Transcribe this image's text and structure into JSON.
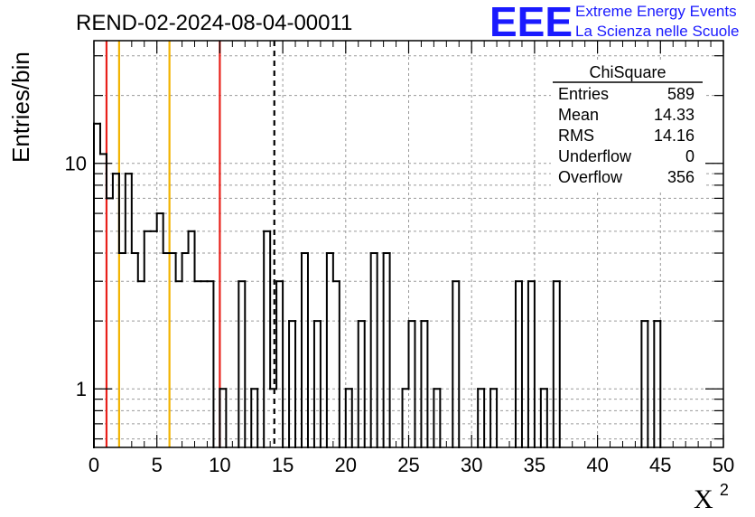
{
  "chart_data": {
    "type": "histogram",
    "title": "REND-02-2024-08-04-00011",
    "xlabel": "X²",
    "ylabel": "Entries/bin",
    "xlim": [
      0,
      50
    ],
    "ylim": [
      0.55,
      35
    ],
    "y_scale": "log",
    "grid": true,
    "x_ticks": [
      0,
      5,
      10,
      15,
      20,
      25,
      30,
      35,
      40,
      45,
      50
    ],
    "y_tick_labels": [
      {
        "value": 1,
        "label": "1"
      },
      {
        "value": 10,
        "label": "10"
      }
    ],
    "bin_width": 0.5,
    "bin_start": 0,
    "values": [
      15,
      11,
      7,
      9,
      4,
      9,
      4,
      3,
      5,
      5,
      6,
      4,
      4,
      3,
      4,
      5,
      3,
      3,
      3,
      0,
      1,
      0,
      0,
      3,
      0,
      1,
      0,
      5,
      1,
      3,
      0,
      2,
      0,
      4,
      0,
      2,
      0,
      4,
      3,
      0,
      1,
      0,
      2,
      0,
      4,
      0,
      4,
      0,
      0,
      1,
      2,
      0,
      2,
      0,
      1,
      0,
      0,
      3,
      0,
      0,
      0,
      1,
      0,
      1,
      0,
      0,
      0,
      3,
      0,
      3,
      0,
      1,
      0,
      3,
      0,
      0,
      0,
      0,
      0,
      0,
      0,
      0,
      0,
      0,
      0,
      0,
      0,
      2,
      0,
      2,
      0,
      0,
      0,
      0,
      0,
      0,
      0,
      0,
      0,
      0
    ],
    "reference_lines": [
      {
        "x": 1,
        "color": "#e8201a",
        "style": "solid"
      },
      {
        "x": 2,
        "color": "#f2b300",
        "style": "solid"
      },
      {
        "x": 6,
        "color": "#f2b300",
        "style": "solid"
      },
      {
        "x": 10,
        "color": "#e8201a",
        "style": "solid"
      },
      {
        "x": 14.33,
        "color": "#000000",
        "style": "dashed"
      }
    ],
    "stats_box": {
      "title": "ChiSquare",
      "rows": [
        {
          "label": "Entries",
          "value": "589"
        },
        {
          "label": "Mean",
          "value": "14.33"
        },
        {
          "label": "RMS",
          "value": "14.16"
        },
        {
          "label": "Underflow",
          "value": "0"
        },
        {
          "label": "Overflow",
          "value": "356"
        }
      ]
    }
  },
  "logo": {
    "mark": "EEE",
    "line1": "Extreme Energy Events",
    "line2": "La Scienza nelle Scuole",
    "color": "#1a1aff"
  }
}
